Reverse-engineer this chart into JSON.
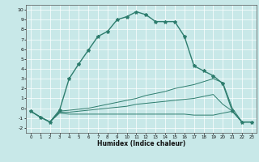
{
  "xlabel": "Humidex (Indice chaleur)",
  "background_color": "#c8e8e8",
  "line_color": "#2e7d6e",
  "xlim": [
    -0.5,
    23.5
  ],
  "ylim": [
    -2.5,
    10.5
  ],
  "xticks": [
    0,
    1,
    2,
    3,
    4,
    5,
    6,
    7,
    8,
    9,
    10,
    11,
    12,
    13,
    14,
    15,
    16,
    17,
    18,
    19,
    20,
    21,
    22,
    23
  ],
  "yticks": [
    -2,
    -1,
    0,
    1,
    2,
    3,
    4,
    5,
    6,
    7,
    8,
    9,
    10
  ],
  "series": [
    {
      "x": [
        0,
        1,
        2,
        3,
        4,
        5,
        6,
        7,
        8,
        9,
        10,
        11,
        12,
        13,
        14,
        15,
        16,
        17,
        18,
        19,
        20,
        21,
        22,
        23
      ],
      "y": [
        -0.3,
        -0.9,
        -1.4,
        -0.2,
        3.0,
        4.5,
        5.9,
        7.3,
        7.8,
        9.0,
        9.3,
        9.8,
        9.5,
        8.8,
        8.8,
        8.8,
        7.3,
        4.3,
        3.8,
        3.3,
        2.5,
        -0.3,
        -1.4,
        -1.4
      ],
      "marker": "*",
      "markersize": 3,
      "linewidth": 1.0
    },
    {
      "x": [
        0,
        1,
        2,
        3,
        4,
        5,
        6,
        7,
        8,
        9,
        10,
        11,
        12,
        13,
        14,
        15,
        16,
        17,
        18,
        19,
        20,
        21,
        22,
        23
      ],
      "y": [
        -0.3,
        -0.9,
        -1.4,
        -0.5,
        -0.6,
        -0.6,
        -0.6,
        -0.6,
        -0.6,
        -0.6,
        -0.6,
        -0.6,
        -0.6,
        -0.6,
        -0.6,
        -0.6,
        -0.6,
        -0.7,
        -0.7,
        -0.7,
        -0.5,
        -0.3,
        -1.4,
        -1.4
      ],
      "marker": null,
      "linewidth": 0.7
    },
    {
      "x": [
        0,
        1,
        2,
        3,
        4,
        5,
        6,
        7,
        8,
        9,
        10,
        11,
        12,
        13,
        14,
        15,
        16,
        17,
        18,
        19,
        20,
        21,
        22,
        23
      ],
      "y": [
        -0.3,
        -0.9,
        -1.4,
        -0.4,
        -0.4,
        -0.3,
        -0.2,
        -0.1,
        0.0,
        0.1,
        0.2,
        0.4,
        0.5,
        0.6,
        0.7,
        0.8,
        0.9,
        1.0,
        1.2,
        1.4,
        0.4,
        -0.3,
        -1.4,
        -1.4
      ],
      "marker": null,
      "linewidth": 0.7
    },
    {
      "x": [
        0,
        1,
        2,
        3,
        4,
        5,
        6,
        7,
        8,
        9,
        10,
        11,
        12,
        13,
        14,
        15,
        16,
        17,
        18,
        19,
        20,
        21,
        22,
        23
      ],
      "y": [
        -0.3,
        -0.9,
        -1.4,
        -0.3,
        -0.2,
        -0.1,
        0.0,
        0.2,
        0.4,
        0.6,
        0.8,
        1.0,
        1.3,
        1.5,
        1.7,
        2.0,
        2.2,
        2.4,
        2.7,
        3.0,
        2.6,
        0.0,
        -1.4,
        -1.4
      ],
      "marker": null,
      "linewidth": 0.7
    }
  ]
}
